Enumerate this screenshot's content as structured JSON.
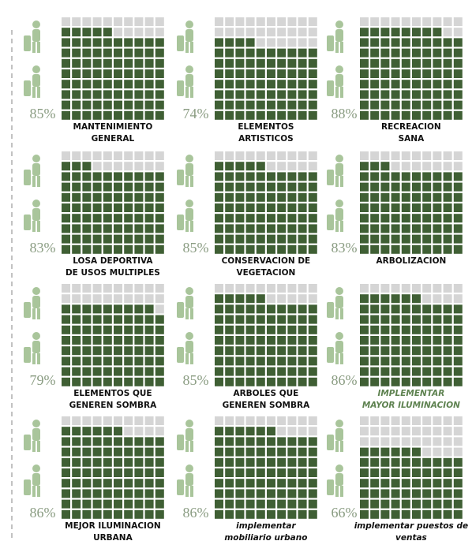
{
  "chart_data": [
    {
      "type": "waffle",
      "title": [
        "MANTENIMIENTO",
        "GENERAL"
      ],
      "values": [
        85
      ],
      "value_labels": [
        "85%"
      ],
      "color": "#3f5f34",
      "empty_color": "#d5d5d5",
      "title_color": "#111111",
      "title_italic": false
    },
    {
      "type": "waffle",
      "title": [
        "ELEMENTOS",
        "ARTISTICOS"
      ],
      "values": [
        74
      ],
      "value_labels": [
        "74%"
      ],
      "color": "#3f5f34",
      "empty_color": "#d5d5d5",
      "title_color": "#111111",
      "title_italic": false
    },
    {
      "type": "waffle",
      "title": [
        "RECREACION",
        "SANA"
      ],
      "values": [
        88
      ],
      "value_labels": [
        "88%"
      ],
      "color": "#3f5f34",
      "empty_color": "#d5d5d5",
      "title_color": "#111111",
      "title_italic": false
    },
    {
      "type": "waffle",
      "title": [
        "LOSA DEPORTIVA",
        "DE USOS MULTIPLES"
      ],
      "values": [
        83
      ],
      "value_labels": [
        "83%"
      ],
      "color": "#3f5f34",
      "empty_color": "#d5d5d5",
      "title_color": "#111111",
      "title_italic": false
    },
    {
      "type": "waffle",
      "title": [
        "CONSERVACION DE",
        "VEGETACION"
      ],
      "values": [
        85
      ],
      "value_labels": [
        "85%"
      ],
      "color": "#3f5f34",
      "empty_color": "#d5d5d5",
      "title_color": "#111111",
      "title_italic": false
    },
    {
      "type": "waffle",
      "title": [
        "ARBOLIZACION"
      ],
      "values": [
        83
      ],
      "value_labels": [
        "83%"
      ],
      "color": "#3f5f34",
      "empty_color": "#d5d5d5",
      "title_color": "#111111",
      "title_italic": false
    },
    {
      "type": "waffle",
      "title": [
        "ELEMENTOS QUE",
        "GENEREN SOMBRA"
      ],
      "values": [
        79
      ],
      "value_labels": [
        "79%"
      ],
      "color": "#3f5f34",
      "empty_color": "#d5d5d5",
      "title_color": "#111111",
      "title_italic": false
    },
    {
      "type": "waffle",
      "title": [
        "ARBOLES QUE",
        "GENEREN SOMBRA"
      ],
      "values": [
        85
      ],
      "value_labels": [
        "85%"
      ],
      "color": "#3f5f34",
      "empty_color": "#d5d5d5",
      "title_color": "#111111",
      "title_italic": false
    },
    {
      "type": "waffle",
      "title": [
        "IMPLEMENTAR",
        "MAYOR ILUMINACION"
      ],
      "values": [
        86
      ],
      "value_labels": [
        "86%"
      ],
      "color": "#3f5f34",
      "empty_color": "#d5d5d5",
      "title_color": "#5e8250",
      "title_italic": true
    },
    {
      "type": "waffle",
      "title": [
        "MEJOR ILUMINACION",
        "URBANA"
      ],
      "values": [
        86
      ],
      "value_labels": [
        "86%"
      ],
      "color": "#3f5f34",
      "empty_color": "#d5d5d5",
      "title_color": "#111111",
      "title_italic": false
    },
    {
      "type": "waffle",
      "title": [
        "implementar",
        "mobiliario urbano"
      ],
      "values": [
        86
      ],
      "value_labels": [
        "86%"
      ],
      "color": "#3f5f34",
      "empty_color": "#d5d5d5",
      "title_color": "#111111",
      "title_italic": true
    },
    {
      "type": "waffle",
      "title": [
        "implementar puestos de",
        "ventas"
      ],
      "values": [
        66
      ],
      "value_labels": [
        "66%"
      ],
      "color": "#3f5f34",
      "empty_color": "#d5d5d5",
      "title_color": "#111111",
      "title_italic": true
    }
  ]
}
